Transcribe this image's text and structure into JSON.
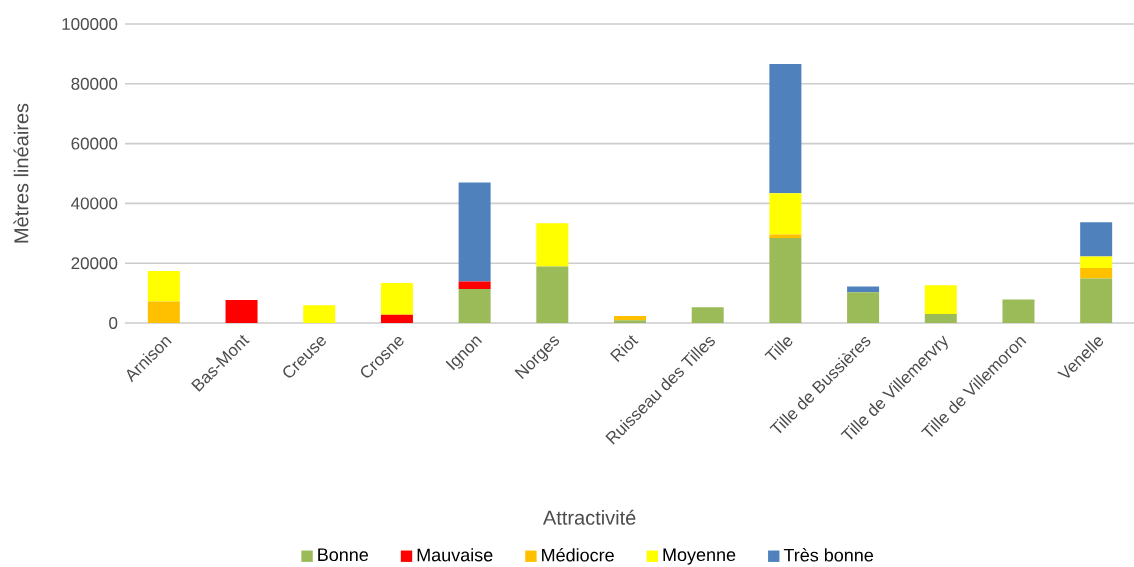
{
  "chart_data": {
    "type": "bar",
    "stacked": true,
    "xlabel": "Attractivité",
    "ylabel": "Mètres linéaires",
    "categories": [
      "Arnison",
      "Bas-Mont",
      "Creuse",
      "Crosne",
      "Ignon",
      "Norges",
      "Riot",
      "Ruisseau des Tilles",
      "Tille",
      "Tille de Bussières",
      "Tille de Villemervry",
      "Tille de Villemoron",
      "Venelle"
    ],
    "series": [
      {
        "name": "Bonne",
        "color": "#9bbb59",
        "values": [
          null,
          null,
          null,
          null,
          11400,
          18900,
          900,
          5300,
          28400,
          10300,
          3000,
          7900,
          14900
        ]
      },
      {
        "name": "Mauvaise",
        "color": "#ff0000",
        "values": [
          null,
          7700,
          null,
          2800,
          2500,
          null,
          null,
          null,
          null,
          null,
          null,
          null,
          null
        ]
      },
      {
        "name": "Médiocre",
        "color": "#ffc000",
        "values": [
          7200,
          null,
          null,
          null,
          null,
          null,
          1400,
          null,
          1200,
          null,
          null,
          null,
          3500
        ]
      },
      {
        "name": "Moyenne",
        "color": "#ffff00",
        "values": [
          10200,
          null,
          5900,
          10600,
          null,
          14500,
          null,
          null,
          13800,
          null,
          9600,
          null,
          3800
        ]
      },
      {
        "name": "Très bonne",
        "color": "#4f81bd",
        "values": [
          null,
          null,
          null,
          null,
          33100,
          null,
          null,
          null,
          43200,
          1900,
          null,
          null,
          11500
        ]
      }
    ],
    "ylim": [
      0,
      100000
    ],
    "yticks": [
      0,
      20000,
      40000,
      60000,
      80000,
      100000
    ],
    "grid": "y",
    "legend": "bottom"
  }
}
